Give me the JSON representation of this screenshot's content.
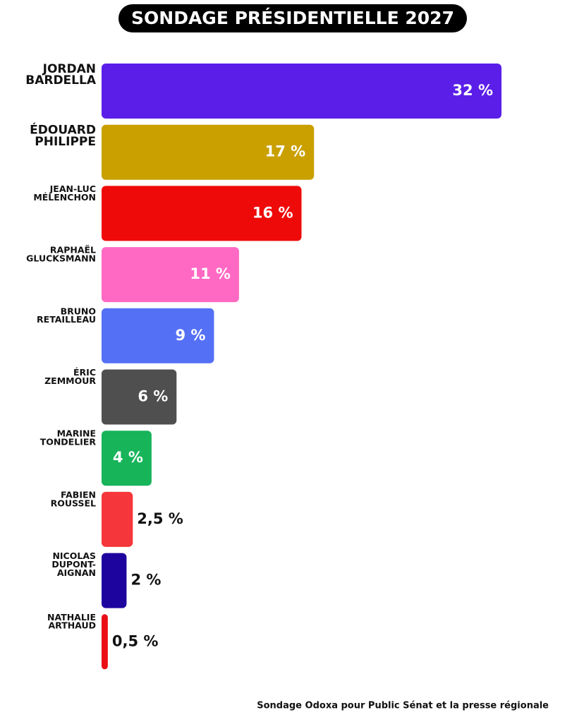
{
  "chart_data": {
    "type": "bar",
    "orientation": "horizontal",
    "title": "SONDAGE PRÉSIDENTIELLE 2027",
    "categories": [
      "JORDAN\nBARDELLA",
      "ÉDOUARD\nPHILIPPE",
      "JEAN-LUC\nMÉLENCHON",
      "RAPHAËL\nGLUCKSMANN",
      "BRUNO\nRETAILLEAU",
      "ÉRIC\nZEMMOUR",
      "MARINE\nTONDELIER",
      "FABIEN\nROUSSEL",
      "NICOLAS\nDUPONT-\nAIGNAN",
      "NATHALIE\nARTHAUD"
    ],
    "values": [
      32,
      17,
      16,
      11,
      9,
      6,
      4,
      2.5,
      2,
      0.5
    ],
    "value_labels": [
      "32 %",
      "17 %",
      "16 %",
      "11 %",
      "9 %",
      "6 %",
      "4 %",
      "2,5 %",
      "2 %",
      "0,5 %"
    ],
    "colors": [
      "#5b1ee8",
      "#c9a000",
      "#ef0a0a",
      "#ff69c4",
      "#5470f5",
      "#4f4f4f",
      "#17b45a",
      "#f5363a",
      "#1d049e",
      "#ea0e16"
    ],
    "source": "Sondage Odoxa pour Public Sénat et la presse régionale"
  }
}
